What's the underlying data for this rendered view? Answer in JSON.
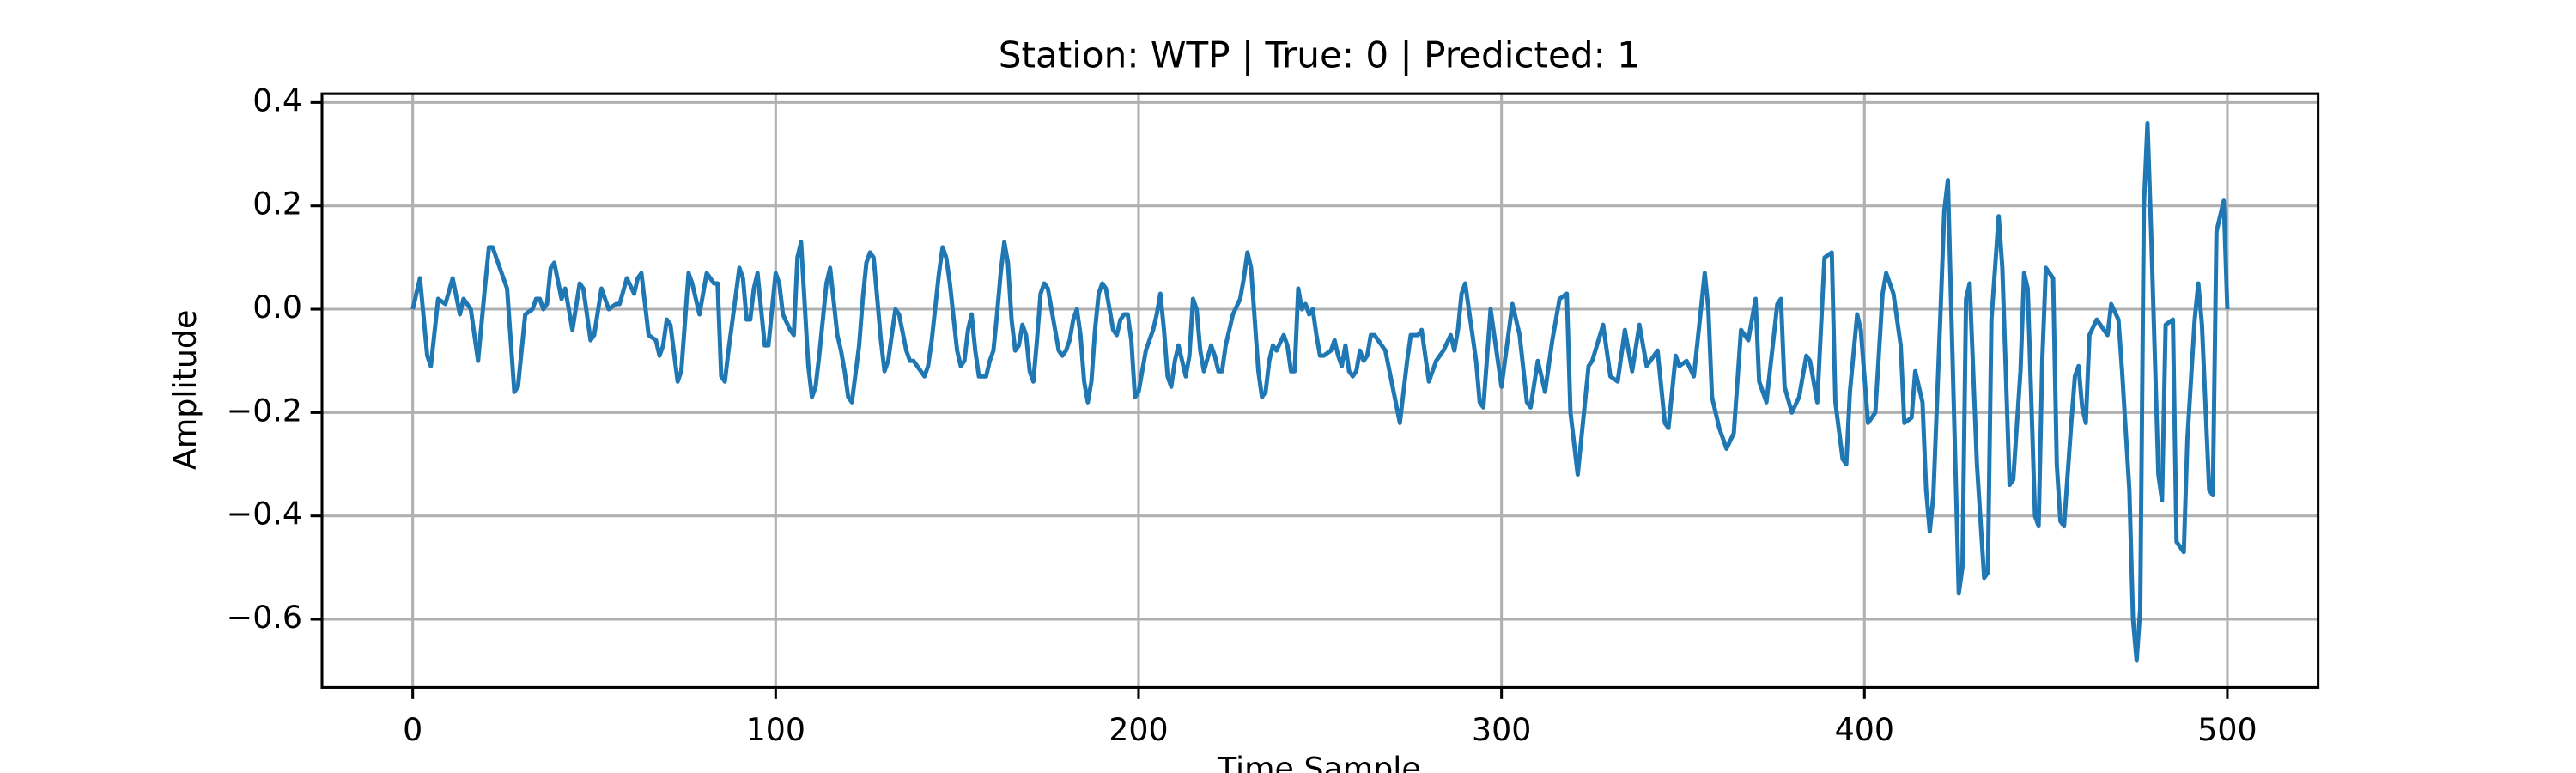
{
  "chart_data": {
    "type": "line",
    "title": "Station: WTP | True: 0 | Predicted: 1",
    "x_label": "Time Sample",
    "y_label": "Amplitude",
    "x": [
      0,
      2,
      4,
      5,
      7,
      9,
      11,
      13,
      14,
      16,
      18,
      20,
      21,
      22,
      24,
      25,
      26,
      28,
      29,
      31,
      33,
      34,
      35,
      36,
      37,
      38,
      39,
      41,
      42,
      44,
      46,
      47,
      49,
      50,
      52,
      54,
      56,
      57,
      59,
      61,
      62,
      63,
      65,
      67,
      68,
      69,
      70,
      71,
      73,
      74,
      76,
      77,
      79,
      81,
      82,
      83,
      84,
      85,
      86,
      87,
      90,
      91,
      92,
      93,
      94,
      95,
      96,
      97,
      98,
      100,
      101,
      102,
      104,
      105,
      106,
      107,
      109,
      110,
      111,
      112,
      114,
      115,
      117,
      118,
      119,
      120,
      121,
      123,
      124,
      125,
      126,
      127,
      128,
      129,
      130,
      131,
      133,
      134,
      136,
      137,
      138,
      139,
      141,
      142,
      143,
      145,
      146,
      147,
      148,
      150,
      151,
      152,
      153,
      154,
      155,
      156,
      158,
      159,
      160,
      161,
      162,
      163,
      164,
      165,
      166,
      167,
      168,
      169,
      170,
      171,
      172,
      173,
      174,
      175,
      177,
      178,
      179,
      180,
      181,
      182,
      183,
      184,
      185,
      186,
      187,
      188,
      189,
      190,
      191,
      193,
      194,
      195,
      196,
      197,
      198,
      199,
      200,
      202,
      203,
      204,
      205,
      206,
      207,
      208,
      209,
      210,
      211,
      212,
      213,
      214,
      215,
      216,
      217,
      218,
      220,
      221,
      222,
      223,
      224,
      226,
      228,
      229,
      230,
      231,
      232,
      233,
      234,
      235,
      236,
      237,
      238,
      240,
      241,
      242,
      243,
      244,
      245,
      246,
      247,
      248,
      249,
      250,
      251,
      253,
      254,
      255,
      256,
      257,
      258,
      259,
      260,
      261,
      262,
      263,
      264,
      265,
      266,
      268,
      270,
      272,
      274,
      275,
      277,
      278,
      280,
      282,
      284,
      286,
      287,
      288,
      289,
      290,
      292,
      293,
      294,
      295,
      297,
      300,
      303,
      305,
      307,
      308,
      310,
      312,
      314,
      316,
      318,
      319,
      321,
      323,
      324,
      325,
      328,
      330,
      332,
      334,
      336,
      338,
      340,
      343,
      345,
      346,
      348,
      349,
      351,
      353,
      356,
      357,
      358,
      360,
      362,
      364,
      366,
      368,
      370,
      371,
      373,
      376,
      377,
      378,
      380,
      382,
      384,
      385,
      387,
      389,
      391,
      392,
      394,
      395,
      396,
      398,
      399,
      401,
      403,
      405,
      406,
      408,
      410,
      411,
      413,
      414,
      416,
      417,
      418,
      419,
      421,
      422,
      423,
      424,
      426,
      427,
      428,
      429,
      431,
      433,
      434,
      435,
      437,
      438,
      440,
      441,
      443,
      444,
      445,
      447,
      448,
      449,
      450,
      452,
      453,
      454,
      455,
      457,
      458,
      459,
      460,
      461,
      462,
      464,
      465,
      467,
      468,
      470,
      471,
      473,
      474,
      475,
      476,
      477,
      478,
      479,
      481,
      482,
      483,
      485,
      486,
      488,
      489,
      491,
      492,
      493,
      495,
      496,
      497,
      499,
      500
    ],
    "values": [
      0,
      0.06,
      -0.09,
      -0.11,
      0.02,
      0.01,
      0.06,
      -0.01,
      0.02,
      0,
      -0.1,
      0.05,
      0.12,
      0.12,
      0.08,
      0.06,
      0.04,
      -0.16,
      -0.15,
      -0.01,
      0,
      0.02,
      0.02,
      0,
      0.01,
      0.08,
      0.09,
      0.02,
      0.04,
      -0.04,
      0.05,
      0.04,
      -0.06,
      -0.05,
      0.04,
      0,
      0.01,
      0.01,
      0.06,
      0.03,
      0.06,
      0.07,
      -0.05,
      -0.06,
      -0.09,
      -0.07,
      -0.02,
      -0.03,
      -0.14,
      -0.12,
      0.07,
      0.05,
      -0.01,
      0.07,
      0.06,
      0.05,
      0.05,
      -0.13,
      -0.14,
      -0.08,
      0.08,
      0.06,
      -0.02,
      -0.02,
      0.04,
      0.07,
      0,
      -0.07,
      -0.07,
      0.07,
      0.05,
      -0.01,
      -0.04,
      -0.05,
      0.1,
      0.13,
      -0.11,
      -0.17,
      -0.15,
      -0.09,
      0.05,
      0.08,
      -0.05,
      -0.08,
      -0.12,
      -0.17,
      -0.18,
      -0.07,
      0.02,
      0.09,
      0.11,
      0.1,
      0.02,
      -0.06,
      -0.12,
      -0.1,
      0,
      -0.01,
      -0.08,
      -0.1,
      -0.1,
      -0.11,
      -0.13,
      -0.11,
      -0.06,
      0.07,
      0.12,
      0.1,
      0.05,
      -0.08,
      -0.11,
      -0.1,
      -0.04,
      -0.01,
      -0.08,
      -0.13,
      -0.13,
      -0.1,
      -0.08,
      -0.01,
      0.07,
      0.13,
      0.09,
      -0.02,
      -0.08,
      -0.07,
      -0.03,
      -0.05,
      -0.12,
      -0.14,
      -0.06,
      0.03,
      0.05,
      0.04,
      -0.04,
      -0.08,
      -0.09,
      -0.08,
      -0.06,
      -0.02,
      0,
      -0.05,
      -0.14,
      -0.18,
      -0.14,
      -0.04,
      0.03,
      0.05,
      0.04,
      -0.04,
      -0.05,
      -0.02,
      -0.01,
      -0.01,
      -0.06,
      -0.17,
      -0.16,
      -0.08,
      -0.06,
      -0.04,
      -0.01,
      0.03,
      -0.04,
      -0.13,
      -0.15,
      -0.1,
      -0.07,
      -0.1,
      -0.13,
      -0.09,
      0.02,
      0,
      -0.08,
      -0.12,
      -0.07,
      -0.09,
      -0.12,
      -0.12,
      -0.07,
      -0.01,
      0.02,
      0.06,
      0.11,
      0.08,
      -0.02,
      -0.12,
      -0.17,
      -0.16,
      -0.1,
      -0.07,
      -0.08,
      -0.05,
      -0.07,
      -0.12,
      -0.12,
      0.04,
      0,
      0.01,
      -0.01,
      0,
      -0.05,
      -0.09,
      -0.09,
      -0.08,
      -0.06,
      -0.09,
      -0.11,
      -0.07,
      -0.12,
      -0.13,
      -0.12,
      -0.08,
      -0.1,
      -0.09,
      -0.05,
      -0.05,
      -0.06,
      -0.08,
      -0.15,
      -0.22,
      -0.1,
      -0.05,
      -0.05,
      -0.04,
      -0.14,
      -0.1,
      -0.08,
      -0.05,
      -0.08,
      -0.04,
      0.03,
      0.05,
      -0.05,
      -0.1,
      -0.18,
      -0.19,
      0,
      -0.15,
      0.01,
      -0.05,
      -0.18,
      -0.19,
      -0.1,
      -0.16,
      -0.06,
      0.02,
      0.03,
      -0.2,
      -0.32,
      -0.18,
      -0.11,
      -0.1,
      -0.03,
      -0.13,
      -0.14,
      -0.04,
      -0.12,
      -0.03,
      -0.11,
      -0.08,
      -0.22,
      -0.23,
      -0.09,
      -0.11,
      -0.1,
      -0.13,
      0.07,
      0,
      -0.17,
      -0.23,
      -0.27,
      -0.24,
      -0.04,
      -0.06,
      0.02,
      -0.14,
      -0.18,
      0.01,
      0.02,
      -0.15,
      -0.2,
      -0.17,
      -0.09,
      -0.1,
      -0.18,
      0.1,
      0.11,
      -0.18,
      -0.29,
      -0.3,
      -0.16,
      -0.01,
      -0.04,
      -0.22,
      -0.2,
      0.03,
      0.07,
      0.03,
      -0.07,
      -0.22,
      -0.21,
      -0.12,
      -0.18,
      -0.35,
      -0.43,
      -0.36,
      0,
      0.19,
      0.25,
      -0.02,
      -0.55,
      -0.5,
      0.02,
      0.05,
      -0.3,
      -0.52,
      -0.51,
      -0.02,
      0.18,
      0.08,
      -0.34,
      -0.33,
      -0.12,
      0.07,
      0.04,
      -0.4,
      -0.42,
      -0.1,
      0.08,
      0.06,
      -0.3,
      -0.41,
      -0.42,
      -0.22,
      -0.13,
      -0.11,
      -0.19,
      -0.22,
      -0.05,
      -0.02,
      -0.03,
      -0.05,
      0.01,
      -0.02,
      -0.12,
      -0.35,
      -0.6,
      -0.68,
      -0.58,
      0.2,
      0.36,
      0.15,
      -0.32,
      -0.37,
      -0.03,
      -0.02,
      -0.45,
      -0.47,
      -0.25,
      -0.02,
      0.05,
      -0.03,
      -0.35,
      -0.36,
      0.15,
      0.21,
      0
    ],
    "color": "#1f77b4",
    "xlim": [
      -25,
      525
    ],
    "ylim": [
      -0.732,
      0.417
    ],
    "xticks": [
      0,
      100,
      200,
      300,
      400,
      500
    ],
    "yticks": [
      {
        "value": -0.6,
        "label": "−0.6"
      },
      {
        "value": -0.4,
        "label": "−0.4"
      },
      {
        "value": -0.2,
        "label": "−0.2"
      },
      {
        "value": 0,
        "label": "0.0"
      },
      0.2,
      0.4
    ],
    "grid": true
  }
}
